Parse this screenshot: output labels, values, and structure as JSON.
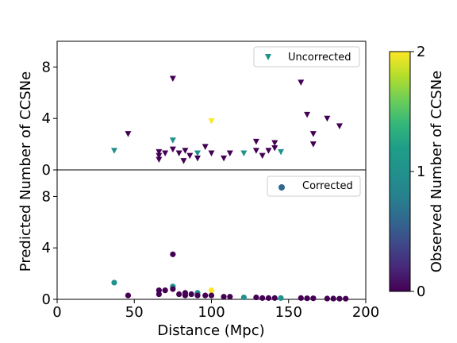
{
  "chart_data": {
    "type": "scatter",
    "xlabel": "Distance (Mpc)",
    "ylabel": "Predicted Number of CCSNe",
    "xlim": [
      0,
      200
    ],
    "xticks": [
      "0",
      "50",
      "100",
      "150",
      "200"
    ],
    "colorbar": {
      "label": "Observed Number of CCSNe",
      "colormap": "viridis",
      "range": [
        0,
        2
      ],
      "ticks": [
        "0",
        "1",
        "2"
      ]
    },
    "panels": [
      {
        "name": "top",
        "ylim": [
          0,
          10
        ],
        "yticks": [
          "0",
          "4",
          "8"
        ],
        "marker": "triangle-down",
        "legend": {
          "label": "Uncorrected",
          "position": "upper right",
          "color": "#21918c"
        },
        "points": [
          {
            "x": 37,
            "y": 1.5,
            "c": 1
          },
          {
            "x": 46,
            "y": 2.8,
            "c": 0
          },
          {
            "x": 66,
            "y": 1.4,
            "c": 0
          },
          {
            "x": 66,
            "y": 1.1,
            "c": 0
          },
          {
            "x": 66,
            "y": 0.8,
            "c": 0
          },
          {
            "x": 70,
            "y": 1.3,
            "c": 0
          },
          {
            "x": 75,
            "y": 7.1,
            "c": 0
          },
          {
            "x": 75,
            "y": 2.3,
            "c": 1
          },
          {
            "x": 75,
            "y": 1.6,
            "c": 0
          },
          {
            "x": 79,
            "y": 1.3,
            "c": 0
          },
          {
            "x": 82,
            "y": 0.7,
            "c": 0
          },
          {
            "x": 83,
            "y": 1.5,
            "c": 0
          },
          {
            "x": 86,
            "y": 1.1,
            "c": 0
          },
          {
            "x": 91,
            "y": 0.9,
            "c": 0
          },
          {
            "x": 91,
            "y": 1.3,
            "c": 1
          },
          {
            "x": 96,
            "y": 1.8,
            "c": 0
          },
          {
            "x": 100,
            "y": 3.8,
            "c": 2
          },
          {
            "x": 100,
            "y": 1.3,
            "c": 0
          },
          {
            "x": 108,
            "y": 0.9,
            "c": 0
          },
          {
            "x": 112,
            "y": 1.3,
            "c": 0
          },
          {
            "x": 121,
            "y": 1.3,
            "c": 1
          },
          {
            "x": 129,
            "y": 2.2,
            "c": 0
          },
          {
            "x": 129,
            "y": 1.5,
            "c": 0
          },
          {
            "x": 133,
            "y": 1.1,
            "c": 0
          },
          {
            "x": 137,
            "y": 1.5,
            "c": 0
          },
          {
            "x": 141,
            "y": 2.1,
            "c": 0
          },
          {
            "x": 141,
            "y": 1.7,
            "c": 0
          },
          {
            "x": 145,
            "y": 1.4,
            "c": 1
          },
          {
            "x": 158,
            "y": 6.8,
            "c": 0
          },
          {
            "x": 162,
            "y": 4.3,
            "c": 0
          },
          {
            "x": 166,
            "y": 2.8,
            "c": 0
          },
          {
            "x": 166,
            "y": 2.0,
            "c": 0
          },
          {
            "x": 175,
            "y": 4.0,
            "c": 0
          },
          {
            "x": 183,
            "y": 3.4,
            "c": 0
          }
        ]
      },
      {
        "name": "bottom",
        "ylim": [
          0,
          10
        ],
        "yticks": [
          "0",
          "4",
          "8"
        ],
        "marker": "circle",
        "legend": {
          "label": "Corrected",
          "position": "upper right",
          "color": "#31688e"
        },
        "points": [
          {
            "x": 37,
            "y": 1.3,
            "c": 1
          },
          {
            "x": 46,
            "y": 0.3,
            "c": 0
          },
          {
            "x": 66,
            "y": 0.7,
            "c": 0
          },
          {
            "x": 66,
            "y": 0.4,
            "c": 0
          },
          {
            "x": 70,
            "y": 0.7,
            "c": 0
          },
          {
            "x": 75,
            "y": 3.5,
            "c": 0
          },
          {
            "x": 75,
            "y": 1.0,
            "c": 1
          },
          {
            "x": 75,
            "y": 0.8,
            "c": 0
          },
          {
            "x": 79,
            "y": 0.4,
            "c": 0
          },
          {
            "x": 83,
            "y": 0.5,
            "c": 0
          },
          {
            "x": 83,
            "y": 0.3,
            "c": 0
          },
          {
            "x": 87,
            "y": 0.4,
            "c": 0
          },
          {
            "x": 91,
            "y": 0.5,
            "c": 1
          },
          {
            "x": 91,
            "y": 0.3,
            "c": 0
          },
          {
            "x": 96,
            "y": 0.3,
            "c": 0
          },
          {
            "x": 100,
            "y": 0.7,
            "c": 2
          },
          {
            "x": 100,
            "y": 0.3,
            "c": 0
          },
          {
            "x": 108,
            "y": 0.2,
            "c": 0
          },
          {
            "x": 112,
            "y": 0.2,
            "c": 0
          },
          {
            "x": 121,
            "y": 0.15,
            "c": 1
          },
          {
            "x": 129,
            "y": 0.15,
            "c": 0
          },
          {
            "x": 133,
            "y": 0.1,
            "c": 0
          },
          {
            "x": 137,
            "y": 0.1,
            "c": 0
          },
          {
            "x": 141,
            "y": 0.1,
            "c": 0
          },
          {
            "x": 145,
            "y": 0.1,
            "c": 1
          },
          {
            "x": 158,
            "y": 0.1,
            "c": 0
          },
          {
            "x": 162,
            "y": 0.08,
            "c": 0
          },
          {
            "x": 166,
            "y": 0.08,
            "c": 0
          },
          {
            "x": 175,
            "y": 0.06,
            "c": 0
          },
          {
            "x": 179,
            "y": 0.06,
            "c": 0
          },
          {
            "x": 183,
            "y": 0.05,
            "c": 0
          },
          {
            "x": 187,
            "y": 0.05,
            "c": 0
          }
        ]
      }
    ]
  }
}
